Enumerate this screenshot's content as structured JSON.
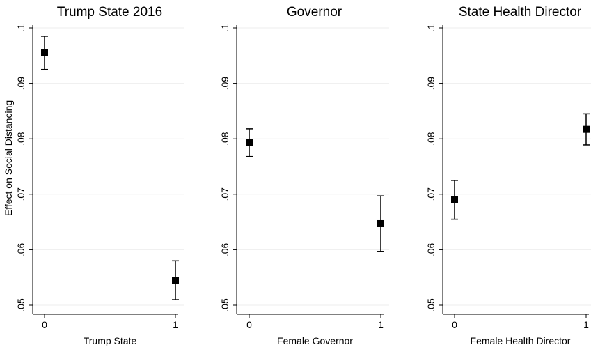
{
  "chart_data": [
    {
      "type": "scatter",
      "title": "Trump State 2016",
      "xlabel": "Trump State",
      "ylabel": "Effect on Social Distancing",
      "x_ticks": [
        "0",
        "1"
      ],
      "y_ticks": [
        ".05",
        ".06",
        ".07",
        ".08",
        ".09",
        ".1"
      ],
      "ylim": [
        0.05,
        0.1
      ],
      "grid": true,
      "points": [
        {
          "x": 0,
          "y": 0.0955,
          "lower": 0.0925,
          "upper": 0.0985
        },
        {
          "x": 1,
          "y": 0.0545,
          "lower": 0.051,
          "upper": 0.058
        }
      ]
    },
    {
      "type": "scatter",
      "title": "Governor",
      "xlabel": "Female Governor",
      "ylabel": "",
      "x_ticks": [
        "0",
        "1"
      ],
      "y_ticks": [
        ".05",
        ".06",
        ".07",
        ".08",
        ".09",
        ".1"
      ],
      "ylim": [
        0.05,
        0.1
      ],
      "grid": true,
      "points": [
        {
          "x": 0,
          "y": 0.0793,
          "lower": 0.0768,
          "upper": 0.0818
        },
        {
          "x": 1,
          "y": 0.0647,
          "lower": 0.0597,
          "upper": 0.0697
        }
      ]
    },
    {
      "type": "scatter",
      "title": "State Health Director",
      "xlabel": "Female Health Director",
      "ylabel": "",
      "x_ticks": [
        "0",
        "1"
      ],
      "y_ticks": [
        ".05",
        ".06",
        ".07",
        ".08",
        ".09",
        ".1"
      ],
      "ylim": [
        0.05,
        0.1
      ],
      "grid": true,
      "points": [
        {
          "x": 0,
          "y": 0.069,
          "lower": 0.0655,
          "upper": 0.0725
        },
        {
          "x": 1,
          "y": 0.0817,
          "lower": 0.0789,
          "upper": 0.0845
        }
      ]
    }
  ]
}
